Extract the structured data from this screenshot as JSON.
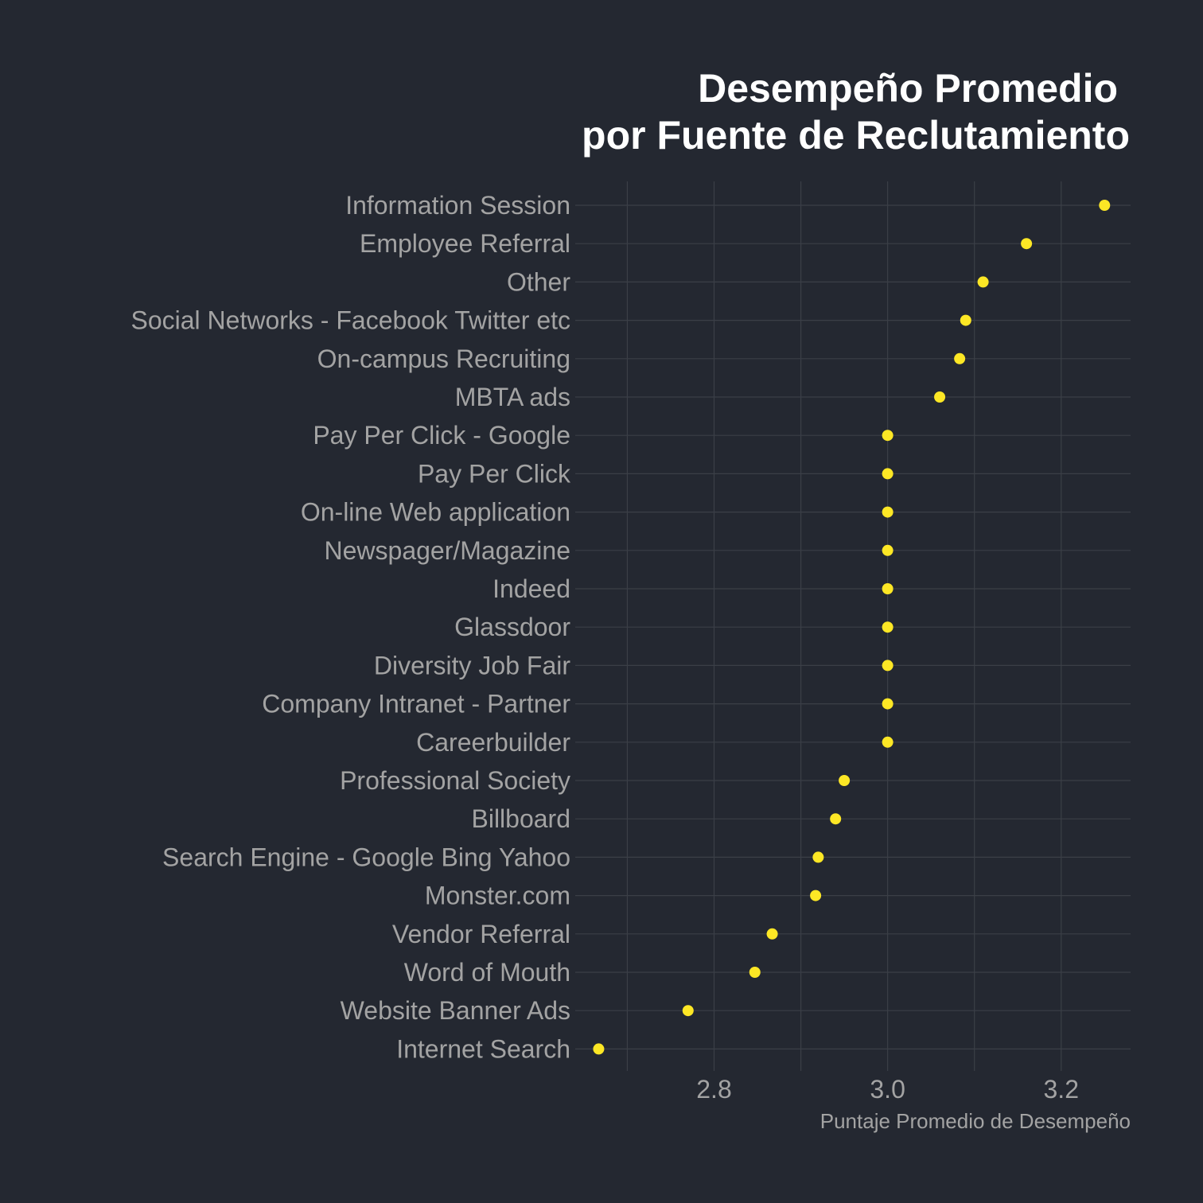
{
  "chart_data": {
    "type": "scatter",
    "title_lines": [
      "Desempeño Promedio ",
      "por Fuente de Reclutamiento"
    ],
    "xlabel": "Puntaje Promedio de Desempeño",
    "ylabel": "",
    "xlim": [
      2.64,
      3.28
    ],
    "xticks": [
      2.8,
      3.0,
      3.2
    ],
    "xtick_labels": [
      "2.8",
      "3.0",
      "3.2"
    ],
    "grid": true,
    "point_color": "#FDE725",
    "categories": [
      "Information Session",
      "Employee Referral",
      "Other",
      "Social Networks - Facebook Twitter etc",
      "On-campus Recruiting",
      "MBTA ads",
      "Pay Per Click - Google",
      "Pay Per Click",
      "On-line Web application",
      "Newspager/Magazine",
      "Indeed",
      "Glassdoor",
      "Diversity Job Fair",
      "Company Intranet - Partner",
      "Careerbuilder",
      "Professional Society",
      "Billboard",
      "Search Engine - Google Bing Yahoo",
      "Monster.com",
      "Vendor Referral",
      "Word of Mouth",
      "Website Banner Ads",
      "Internet Search"
    ],
    "values": [
      3.25,
      3.16,
      3.11,
      3.09,
      3.083,
      3.06,
      3.0,
      3.0,
      3.0,
      3.0,
      3.0,
      3.0,
      3.0,
      3.0,
      3.0,
      2.95,
      2.94,
      2.92,
      2.917,
      2.867,
      2.847,
      2.77,
      2.667
    ]
  }
}
